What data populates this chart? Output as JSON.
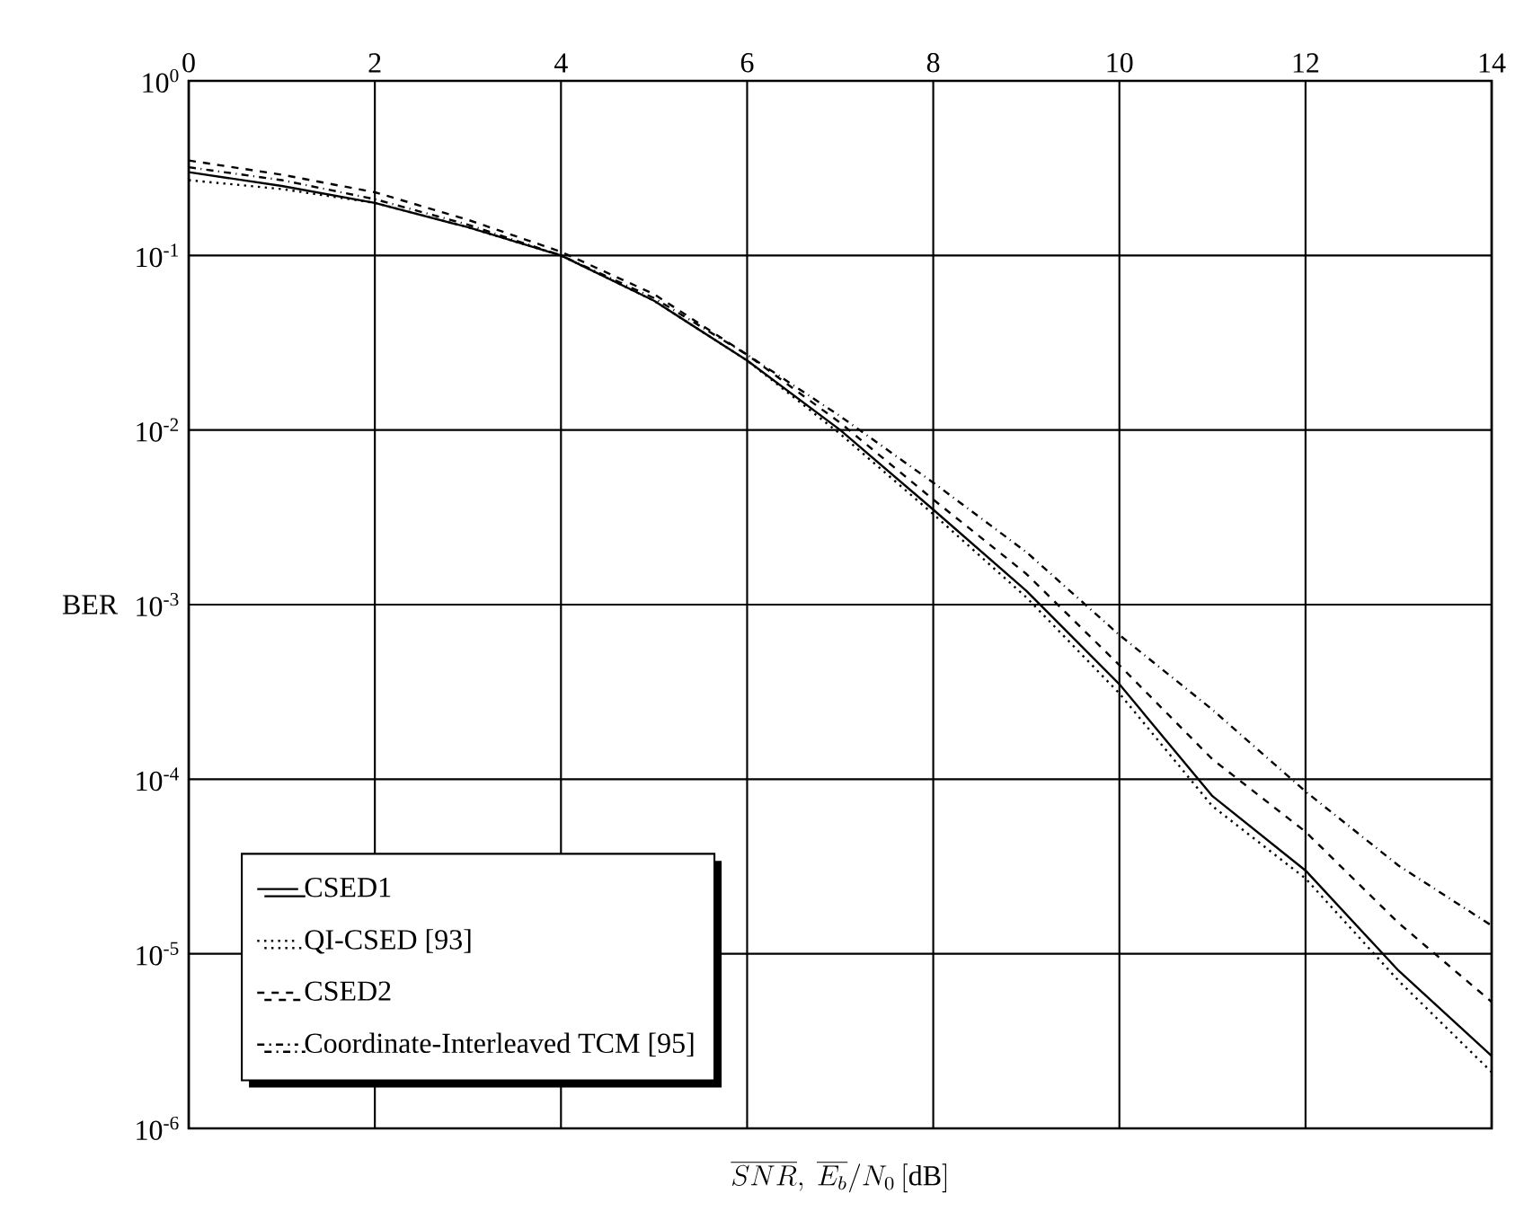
{
  "chart_data": {
    "type": "line",
    "xlabel": "\\overline{SNR},\\ \\overline{E_b}/N_0\\,[\\mathrm{dB}]",
    "ylabel": "BER",
    "log": "y",
    "grid": true,
    "legend": "bottom left",
    "x": [
      0,
      1,
      2,
      3,
      4,
      5,
      6,
      7,
      8,
      9,
      10,
      11,
      12,
      13,
      14
    ],
    "xlim": [
      0,
      14
    ],
    "xticks": [
      0,
      2,
      4,
      6,
      8,
      10,
      12,
      14
    ],
    "ylim": [
      1e-06,
      1
    ],
    "yticks": [
      {
        "value": 1e-06,
        "label": "10$^{-6}$"
      },
      {
        "value": 1e-05,
        "label": "10$^{-5}$"
      },
      {
        "value": 0.0001,
        "label": "10$^{-4}$"
      },
      {
        "value": 0.001,
        "label": "10$^{-3}$"
      },
      {
        "value": 0.01,
        "label": "10$^{-2}$"
      },
      {
        "value": 0.1,
        "label": "10$^{-1}$"
      },
      {
        "value": 1,
        "label": "10$^{0}$"
      }
    ],
    "series": [
      {
        "name": "CSED1",
        "color": "#000000",
        "line_style": "solid",
        "values": [
          0.3,
          0.25,
          0.2,
          0.145,
          0.1,
          0.055,
          0.025,
          0.01,
          0.0035,
          0.0012,
          0.00035,
          8e-05,
          3e-05,
          8e-06,
          2.6e-06
        ]
      },
      {
        "name": "QI-CSED [93]",
        "color": "#000000",
        "line_style": "dotted",
        "values": [
          0.27,
          0.24,
          0.2,
          0.145,
          0.1,
          0.055,
          0.025,
          0.0095,
          0.0033,
          0.0011,
          0.00031,
          7e-05,
          2.7e-05,
          7e-06,
          2.1e-06
        ]
      },
      {
        "name": "CSED2",
        "color": "#000000",
        "line_style": "dashed",
        "values": [
          0.35,
          0.29,
          0.23,
          0.16,
          0.105,
          0.06,
          0.027,
          0.011,
          0.004,
          0.0015,
          0.00045,
          0.00013,
          5e-05,
          1.5e-05,
          5.3e-06
        ]
      },
      {
        "name": "Coordinate-Interleaved TCM [95]",
        "color": "#000000",
        "line_style": "dashdot",
        "values": [
          0.32,
          0.27,
          0.21,
          0.15,
          0.1,
          0.057,
          0.027,
          0.012,
          0.005,
          0.002,
          0.00067,
          0.00025,
          8.5e-05,
          3.2e-05,
          1.45e-05
        ]
      }
    ]
  }
}
